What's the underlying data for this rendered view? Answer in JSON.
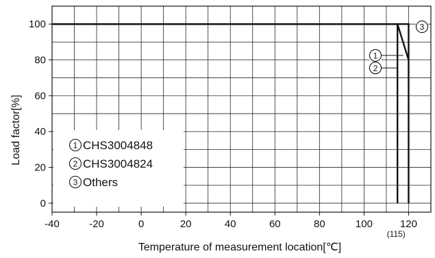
{
  "chart_data": {
    "type": "line",
    "xlabel": "Temperature of measurement location[℃]",
    "ylabel": "Load factor[%]",
    "xlim": [
      -40,
      130
    ],
    "ylim": [
      -5,
      110
    ],
    "x_ticks": [
      -40,
      -20,
      0,
      20,
      40,
      60,
      80,
      100,
      120
    ],
    "y_ticks": [
      0,
      20,
      40,
      60,
      80,
      100
    ],
    "x_tick_labels": [
      "-40",
      "-20",
      "0",
      "20",
      "40",
      "60",
      "80",
      "100",
      "120"
    ],
    "y_tick_labels": [
      "0",
      "20",
      "40",
      "60",
      "80",
      "100"
    ],
    "extra_x_annotation": {
      "x": 115,
      "label": "(115)"
    },
    "grid": true,
    "series": [
      {
        "name": "CHS3004848",
        "marker": "1",
        "x": [
          -40,
          115,
          120
        ],
        "y": [
          100,
          100,
          80
        ]
      },
      {
        "name": "CHS3004824",
        "marker": "2",
        "x": [
          -40,
          115,
          115
        ],
        "y": [
          100,
          100,
          0
        ]
      },
      {
        "name": "Others",
        "marker": "3",
        "x": [
          -40,
          120,
          120
        ],
        "y": [
          100,
          100,
          0
        ]
      }
    ],
    "legend": {
      "placement": "bottom-left",
      "entries": [
        {
          "marker": "1",
          "label": "CHS3004848"
        },
        {
          "marker": "2",
          "label": "CHS3004824"
        },
        {
          "marker": "3",
          "label": "Others"
        }
      ]
    }
  }
}
